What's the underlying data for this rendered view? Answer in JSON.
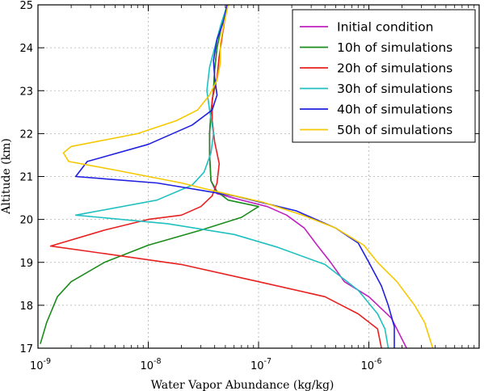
{
  "chart_data": {
    "type": "line",
    "title": "",
    "xlabel": "Water Vapor Abundance (kg/kg)",
    "ylabel": "Altitude (km)",
    "xscale": "log",
    "xlim": [
      1e-09,
      1e-05
    ],
    "ylim": [
      17,
      25
    ],
    "grid": true,
    "legend": "top-right",
    "x_ticks": [
      {
        "value": 1e-09,
        "base": "10",
        "exp": "-9"
      },
      {
        "value": 1e-08,
        "base": "10",
        "exp": "-8"
      },
      {
        "value": 1e-07,
        "base": "10",
        "exp": "-7"
      },
      {
        "value": 1e-06,
        "base": "10",
        "exp": "-6"
      }
    ],
    "y_ticks": [
      "17",
      "18",
      "19",
      "20",
      "21",
      "22",
      "23",
      "24",
      "25"
    ],
    "series": [
      {
        "name": "Initial condition",
        "color": "#c020c0",
        "points": [
          [
            2.2e-06,
            17.0
          ],
          [
            1.6e-06,
            17.7
          ],
          [
            1e-06,
            18.2
          ],
          [
            6e-07,
            18.55
          ],
          [
            4.5e-07,
            19.0
          ],
          [
            3.4e-07,
            19.4
          ],
          [
            2.6e-07,
            19.8
          ],
          [
            1.8e-07,
            20.1
          ],
          [
            1.2e-07,
            20.3
          ],
          [
            7e-08,
            20.45
          ],
          [
            4.2e-08,
            20.6
          ],
          [
            3.7e-08,
            20.9
          ],
          [
            3.6e-08,
            21.5
          ],
          [
            3.6e-08,
            22.0
          ],
          [
            3.7e-08,
            22.5
          ],
          [
            3.9e-08,
            23.0
          ],
          [
            4e-08,
            23.5
          ],
          [
            4.2e-08,
            24.0
          ],
          [
            4.6e-08,
            24.5
          ],
          [
            5.2e-08,
            25.0
          ]
        ]
      },
      {
        "name": "10h of simulations",
        "color": "#1a8c1a",
        "points": [
          [
            1.05e-09,
            17.1
          ],
          [
            1.2e-09,
            17.6
          ],
          [
            1.5e-09,
            18.2
          ],
          [
            2e-09,
            18.55
          ],
          [
            4e-09,
            19.0
          ],
          [
            1e-08,
            19.4
          ],
          [
            3e-08,
            19.75
          ],
          [
            7e-08,
            20.05
          ],
          [
            1e-07,
            20.3
          ],
          [
            5.3e-08,
            20.45
          ],
          [
            4.2e-08,
            20.65
          ],
          [
            3.7e-08,
            20.9
          ],
          [
            3.6e-08,
            21.5
          ],
          [
            3.6e-08,
            22.0
          ],
          [
            3.7e-08,
            22.5
          ],
          [
            3.9e-08,
            23.0
          ],
          [
            4e-08,
            23.5
          ],
          [
            4.2e-08,
            24.0
          ],
          [
            4.6e-08,
            24.5
          ],
          [
            5.2e-08,
            25.0
          ]
        ]
      },
      {
        "name": "20h of simulations",
        "color": "#e82020",
        "points": [
          [
            1.3e-06,
            17.0
          ],
          [
            1.2e-06,
            17.45
          ],
          [
            8e-07,
            17.8
          ],
          [
            4e-07,
            18.2
          ],
          [
            1e-07,
            18.55
          ],
          [
            2e-08,
            18.95
          ],
          [
            3e-09,
            19.25
          ],
          [
            1.3e-09,
            19.38
          ],
          [
            4e-09,
            19.75
          ],
          [
            1e-08,
            20.0
          ],
          [
            2e-08,
            20.1
          ],
          [
            3e-08,
            20.3
          ],
          [
            3.8e-08,
            20.55
          ],
          [
            4.2e-08,
            20.85
          ],
          [
            4.4e-08,
            21.3
          ],
          [
            4e-08,
            21.8
          ],
          [
            3.8e-08,
            22.3
          ],
          [
            3.8e-08,
            22.8
          ],
          [
            4.2e-08,
            23.3
          ],
          [
            4.4e-08,
            23.8
          ],
          [
            4.7e-08,
            24.3
          ],
          [
            5.2e-08,
            25.0
          ]
        ]
      },
      {
        "name": "30h of simulations",
        "color": "#20c0c0",
        "points": [
          [
            1.5e-06,
            17.0
          ],
          [
            1.4e-06,
            17.45
          ],
          [
            1.2e-06,
            17.8
          ],
          [
            8e-07,
            18.35
          ],
          [
            4e-07,
            18.95
          ],
          [
            1.5e-07,
            19.35
          ],
          [
            6e-08,
            19.65
          ],
          [
            1.5e-08,
            19.9
          ],
          [
            2.2e-09,
            20.1
          ],
          [
            1.2e-08,
            20.45
          ],
          [
            2.5e-08,
            20.8
          ],
          [
            3.2e-08,
            21.1
          ],
          [
            3.7e-08,
            21.55
          ],
          [
            3.9e-08,
            22.0
          ],
          [
            3.6e-08,
            22.55
          ],
          [
            3.4e-08,
            23.0
          ],
          [
            3.6e-08,
            23.55
          ],
          [
            4e-08,
            24.0
          ],
          [
            4.5e-08,
            24.5
          ],
          [
            5.2e-08,
            25.0
          ]
        ]
      },
      {
        "name": "40h of simulations",
        "color": "#2020e0",
        "points": [
          [
            1.7e-06,
            17.0
          ],
          [
            1.7e-06,
            17.5
          ],
          [
            1.5e-06,
            18.0
          ],
          [
            1.3e-06,
            18.45
          ],
          [
            1e-06,
            19.0
          ],
          [
            8e-07,
            19.45
          ],
          [
            5e-07,
            19.8
          ],
          [
            2.2e-07,
            20.2
          ],
          [
            6e-08,
            20.55
          ],
          [
            1.2e-08,
            20.85
          ],
          [
            2.2e-09,
            21.0
          ],
          [
            2.8e-09,
            21.35
          ],
          [
            1e-08,
            21.75
          ],
          [
            2.5e-08,
            22.2
          ],
          [
            3.8e-08,
            22.55
          ],
          [
            4.2e-08,
            22.9
          ],
          [
            4e-08,
            23.3
          ],
          [
            3.9e-08,
            23.7
          ],
          [
            4.2e-08,
            24.2
          ],
          [
            4.8e-08,
            24.6
          ],
          [
            5.2e-08,
            25.0
          ]
        ]
      },
      {
        "name": "50h of simulations",
        "color": "#f5c800",
        "points": [
          [
            3.8e-06,
            17.0
          ],
          [
            3.2e-06,
            17.6
          ],
          [
            2.6e-06,
            18.0
          ],
          [
            1.8e-06,
            18.55
          ],
          [
            1.2e-06,
            19.0
          ],
          [
            9e-07,
            19.4
          ],
          [
            5e-07,
            19.8
          ],
          [
            2.5e-07,
            20.1
          ],
          [
            1.1e-07,
            20.4
          ],
          [
            5e-08,
            20.6
          ],
          [
            2e-08,
            20.85
          ],
          [
            5e-09,
            21.15
          ],
          [
            1.9e-09,
            21.35
          ],
          [
            1.7e-09,
            21.55
          ],
          [
            2e-09,
            21.7
          ],
          [
            8e-09,
            22.0
          ],
          [
            1.8e-08,
            22.3
          ],
          [
            2.8e-08,
            22.55
          ],
          [
            3.6e-08,
            22.9
          ],
          [
            4.2e-08,
            23.25
          ],
          [
            4.5e-08,
            23.65
          ],
          [
            4.5e-08,
            24.1
          ],
          [
            4.8e-08,
            24.5
          ],
          [
            5.3e-08,
            25.0
          ]
        ]
      }
    ]
  }
}
